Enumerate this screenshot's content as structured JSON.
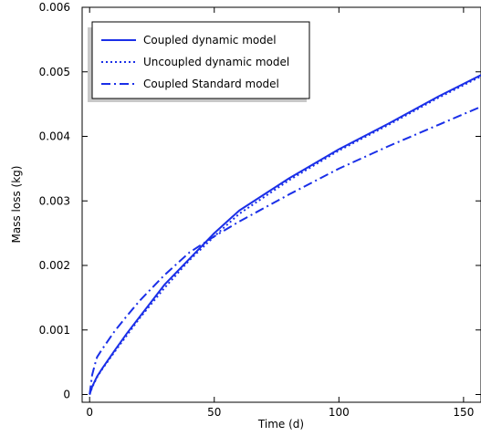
{
  "chart_data": {
    "type": "line",
    "xlabel": "Time (d)",
    "ylabel": "Mass loss (kg)",
    "xlim": [
      -3,
      157
    ],
    "ylim": [
      -0.00012,
      0.006
    ],
    "x_ticks": [
      0,
      50,
      100,
      150
    ],
    "x_tick_labels": [
      "0",
      "50",
      "100",
      "150"
    ],
    "y_ticks": [
      0,
      0.001,
      0.002,
      0.003,
      0.004,
      0.005,
      0.006
    ],
    "y_tick_labels": [
      "0",
      "0.001",
      "0.002",
      "0.003",
      "0.004",
      "0.005",
      "0.006"
    ],
    "grid": false,
    "legend_position": "top-left",
    "series_color": "#1a2fe8",
    "series": [
      {
        "name": "Coupled dynamic model",
        "style": "solid",
        "x": [
          0,
          1,
          2,
          3,
          5,
          10,
          15,
          20,
          30,
          40,
          50,
          60,
          80,
          100,
          120,
          140,
          157
        ],
        "y": [
          0,
          0.00012,
          0.0002,
          0.00028,
          0.0004,
          0.00068,
          0.00095,
          0.0012,
          0.0017,
          0.0021,
          0.0025,
          0.00285,
          0.00335,
          0.0038,
          0.0042,
          0.00462,
          0.00495
        ]
      },
      {
        "name": "Uncoupled dynamic model",
        "style": "dotted",
        "x": [
          0,
          1,
          2,
          3,
          5,
          10,
          15,
          20,
          30,
          40,
          50,
          60,
          80,
          100,
          120,
          140,
          157
        ],
        "y": [
          0,
          0.00011,
          0.00019,
          0.00027,
          0.00039,
          0.00066,
          0.00092,
          0.00118,
          0.00165,
          0.00208,
          0.00245,
          0.0028,
          0.00332,
          0.00378,
          0.00418,
          0.0046,
          0.00493
        ]
      },
      {
        "name": "Coupled Standard model",
        "style": "dashdot",
        "x": [
          0,
          1,
          2,
          3,
          5,
          10,
          15,
          20,
          30,
          40,
          50,
          60,
          80,
          100,
          120,
          140,
          157
        ],
        "y": [
          0,
          0.0003,
          0.00045,
          0.00058,
          0.0007,
          0.00098,
          0.00122,
          0.00145,
          0.00185,
          0.0022,
          0.00245,
          0.00268,
          0.0031,
          0.0035,
          0.00385,
          0.00418,
          0.00446
        ]
      }
    ]
  }
}
